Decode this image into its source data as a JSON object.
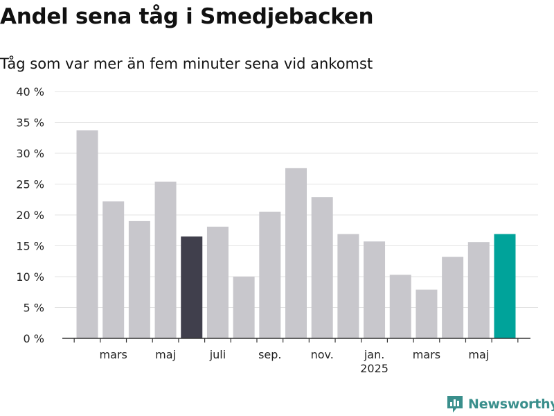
{
  "header": {
    "title": "Andel sena tåg i Smedjebacken",
    "subtitle": "Tåg som var mer än fem minuter sena vid ankomst"
  },
  "brand": {
    "name": "Newsworthy",
    "color": "#3a8f8c"
  },
  "colors": {
    "default": "#c8c7cc",
    "highlight_dark": "#403f4c",
    "highlight_current": "#00a39a"
  },
  "chart_data": {
    "type": "bar",
    "categories": [
      "2024-02",
      "2024-03",
      "2024-04",
      "2024-05",
      "2024-06",
      "2024-07",
      "2024-08",
      "2024-09",
      "2024-10",
      "2024-11",
      "2024-12",
      "2025-01",
      "2025-02",
      "2025-03",
      "2025-04",
      "2025-05",
      "2025-06"
    ],
    "values": [
      33.7,
      22.2,
      19.0,
      25.4,
      16.5,
      18.1,
      10.0,
      20.5,
      27.6,
      22.9,
      16.9,
      15.7,
      10.3,
      7.9,
      13.2,
      15.6,
      16.9
    ],
    "highlight": {
      "2024-06": "dark",
      "2025-06": "current"
    },
    "ylim": [
      0,
      40
    ],
    "yticks": [
      {
        "value": 0,
        "label": "0 %"
      },
      {
        "value": 5,
        "label": "5 %"
      },
      {
        "value": 10,
        "label": "10 %"
      },
      {
        "value": 15,
        "label": "15 %"
      },
      {
        "value": 20,
        "label": "20 %"
      },
      {
        "value": 25,
        "label": "25 %"
      },
      {
        "value": 30,
        "label": "30 %"
      },
      {
        "value": 35,
        "label": "35 %"
      },
      {
        "value": 40,
        "label": "40 %"
      }
    ],
    "xticks": [
      {
        "category": "2024-03",
        "label": "mars"
      },
      {
        "category": "2024-05",
        "label": "maj"
      },
      {
        "category": "2024-07",
        "label": "juli"
      },
      {
        "category": "2024-09",
        "label": "sep."
      },
      {
        "category": "2024-11",
        "label": "nov."
      },
      {
        "category": "2025-01",
        "label": "jan.",
        "sublabel": "2025"
      },
      {
        "category": "2025-03",
        "label": "mars"
      },
      {
        "category": "2025-05",
        "label": "maj"
      }
    ],
    "grid": true,
    "xlabel": "",
    "ylabel": ""
  }
}
